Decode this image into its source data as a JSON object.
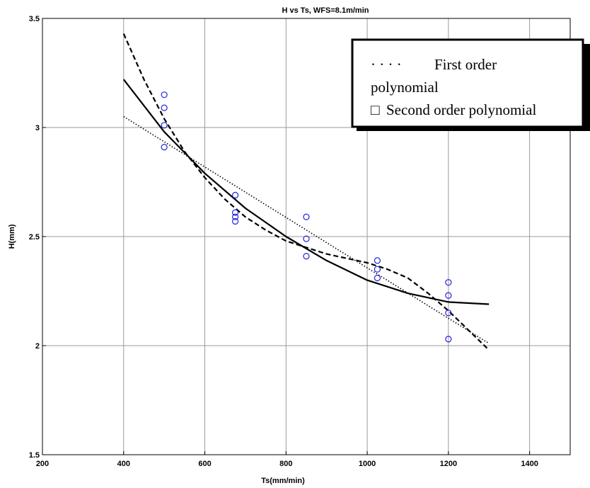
{
  "chart_data": {
    "type": "scatter",
    "title": "H vs Ts, WFS=8.1m/min",
    "xlabel": "Ts(mm/min)",
    "ylabel": "H(mm)",
    "xlim": [
      200,
      1500
    ],
    "ylim": [
      1.5,
      3.5
    ],
    "xticks": [
      200,
      400,
      600,
      800,
      1000,
      1200,
      1400
    ],
    "xtick_labels": [
      "200",
      "400",
      "600",
      "800",
      "1000",
      "1200",
      "1400"
    ],
    "yticks": [
      1.5,
      2,
      2.5,
      3,
      3.5
    ],
    "ytick_labels": [
      "1.5",
      "2",
      "2.5",
      "3",
      "3.5"
    ],
    "grid": true,
    "legend": {
      "placement": "top-right",
      "line1_marker": "· · · ·",
      "line1_text": "First order",
      "line2_text": "polynomial",
      "line3_marker": "□",
      "line3_text": "Second order polynomial"
    },
    "points": {
      "color": "#2222dd",
      "x": [
        500,
        500,
        500,
        500,
        675,
        675,
        675,
        675,
        850,
        850,
        850,
        1025,
        1025,
        1025,
        1200,
        1200,
        1200,
        1200
      ],
      "y": [
        3.15,
        3.09,
        3.01,
        2.91,
        2.69,
        2.61,
        2.59,
        2.57,
        2.59,
        2.49,
        2.41,
        2.39,
        2.35,
        2.31,
        2.29,
        2.23,
        2.15,
        2.03
      ]
    },
    "series": [
      {
        "style": "dotted",
        "x": [
          400,
          1300
        ],
        "y": [
          3.05,
          2.01
        ]
      },
      {
        "style": "solid",
        "x": [
          400,
          500,
          600,
          700,
          800,
          900,
          1000,
          1100,
          1200,
          1300
        ],
        "y": [
          3.22,
          2.98,
          2.79,
          2.63,
          2.5,
          2.39,
          2.3,
          2.24,
          2.2,
          2.19
        ]
      },
      {
        "style": "dashed",
        "x": [
          400,
          450,
          500,
          550,
          600,
          650,
          700,
          750,
          800,
          850,
          900,
          950,
          1000,
          1050,
          1100,
          1150,
          1200,
          1250,
          1300
        ],
        "y": [
          3.43,
          3.22,
          3.04,
          2.89,
          2.77,
          2.67,
          2.59,
          2.53,
          2.48,
          2.45,
          2.42,
          2.4,
          2.38,
          2.35,
          2.31,
          2.24,
          2.16,
          2.07,
          1.98
        ]
      }
    ]
  }
}
